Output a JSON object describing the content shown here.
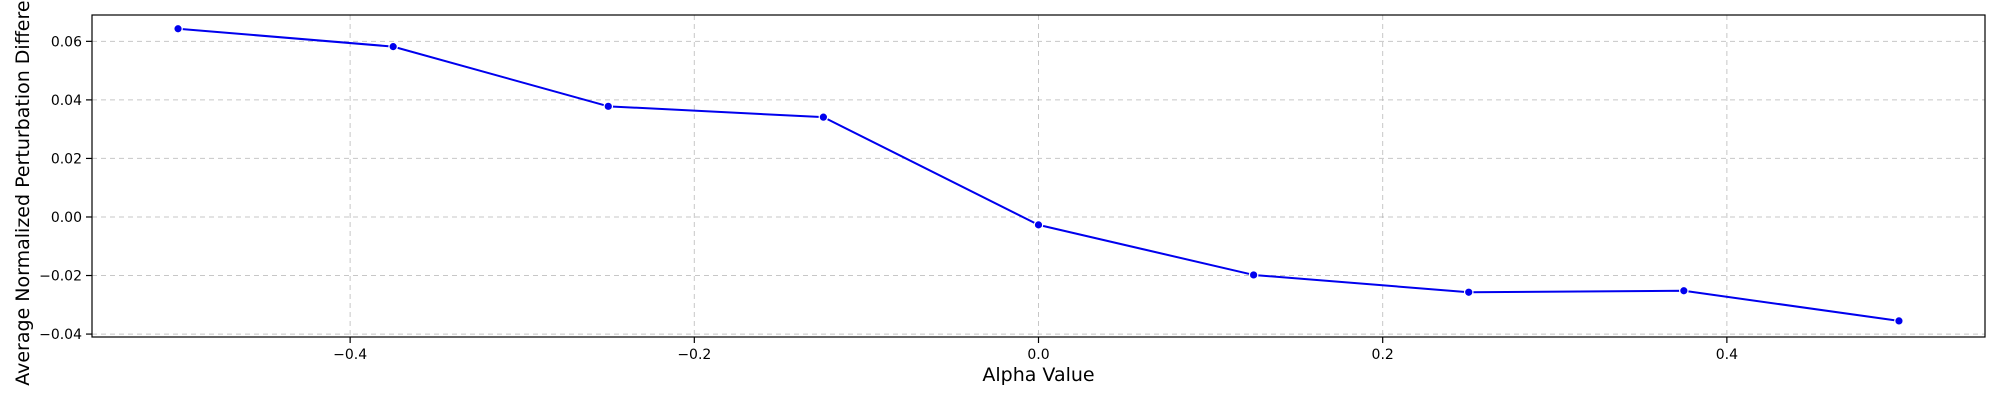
{
  "chart_data": {
    "type": "line",
    "title": "",
    "xlabel": "Alpha Value",
    "ylabel": "Average Normalized Perturbation Difference",
    "xlim": [
      -0.55,
      0.55
    ],
    "ylim": [
      -0.041,
      0.069
    ],
    "xticks": [
      -0.4,
      -0.2,
      0.0,
      0.2,
      0.4
    ],
    "xtick_labels": [
      "−0.4",
      "−0.2",
      "0.0",
      "0.2",
      "0.4"
    ],
    "yticks": [
      -0.04,
      -0.02,
      0.0,
      0.02,
      0.04,
      0.06
    ],
    "ytick_labels": [
      "−0.04",
      "−0.02",
      "0.00",
      "0.02",
      "0.04",
      "0.06"
    ],
    "grid": true,
    "series": [
      {
        "color": "#0000ee",
        "marker": "circle",
        "x": [
          -0.5,
          -0.375,
          -0.25,
          -0.125,
          0.0,
          0.125,
          0.25,
          0.375,
          0.5
        ],
        "y": [
          0.0643,
          0.0582,
          0.0378,
          0.0341,
          -0.0027,
          -0.0198,
          -0.0257,
          -0.0252,
          -0.0355
        ]
      }
    ]
  }
}
